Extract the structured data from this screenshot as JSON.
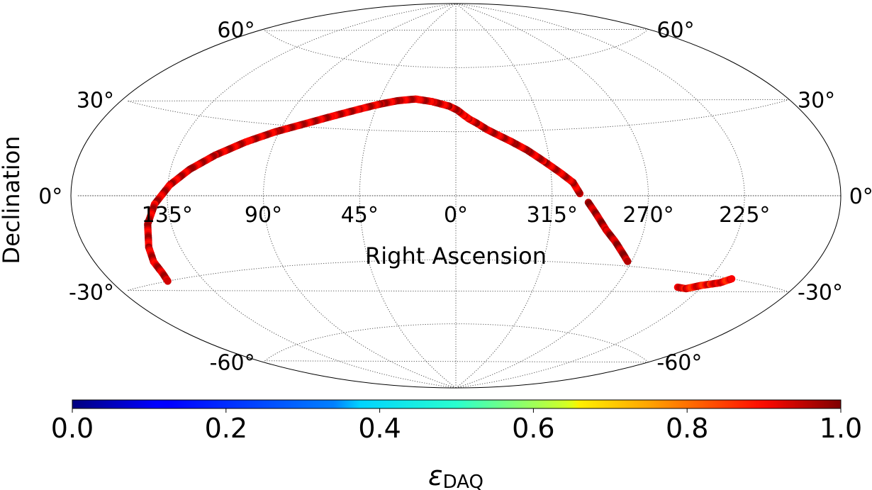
{
  "chart_data": {
    "type": "scatter",
    "projection": "aitoff",
    "xlabel": "Right Ascension",
    "ylabel": "Declination",
    "ra_tick_labels": [
      "135°",
      "90°",
      "45°",
      "0°",
      "315°",
      "270°",
      "225°"
    ],
    "ra_tick_values": [
      135,
      90,
      45,
      0,
      315,
      270,
      225
    ],
    "dec_tick_labels": [
      "60°",
      "60°",
      "30°",
      "30°",
      "0°",
      "0°",
      "-30°",
      "-30°",
      "-60°",
      "-60°"
    ],
    "dec_tick_values": [
      60,
      60,
      30,
      30,
      0,
      0,
      -30,
      -30,
      -60,
      -60
    ],
    "grid": true,
    "colormap": "jet",
    "colorbar": {
      "orientation": "horizontal",
      "range": [
        0.0,
        1.0
      ],
      "tick_labels": [
        "0.0",
        "0.2",
        "0.4",
        "0.6",
        "0.8",
        "1.0"
      ],
      "label_main": "ε",
      "label_sub": "DAQ"
    },
    "tracks": [
      {
        "ra_dec": [
          [
            302,
            1
          ],
          [
            305,
            6
          ],
          [
            310,
            10
          ],
          [
            318,
            16
          ],
          [
            325,
            21
          ],
          [
            332,
            25
          ],
          [
            338,
            28
          ],
          [
            344,
            31
          ],
          [
            349,
            34
          ],
          [
            353,
            36
          ],
          [
            356,
            38
          ],
          [
            359,
            40
          ],
          [
            4,
            42
          ],
          [
            14,
            44
          ],
          [
            24,
            45
          ],
          [
            34,
            44
          ],
          [
            44,
            42
          ],
          [
            55,
            39
          ],
          [
            68,
            35
          ],
          [
            80,
            31
          ],
          [
            92,
            27
          ],
          [
            104,
            22
          ],
          [
            116,
            16
          ],
          [
            126,
            10
          ],
          [
            134,
            4
          ],
          [
            141,
            -3
          ],
          [
            146,
            -10
          ],
          [
            150,
            -18
          ],
          [
            152,
            -23
          ],
          [
            152,
            -27
          ],
          [
            153,
            -30
          ]
        ],
        "value": 0.92
      },
      {
        "ra_dec": [
          [
            298,
            -3
          ],
          [
            294,
            -8
          ],
          [
            288,
            -15
          ],
          [
            282,
            -20
          ],
          [
            276,
            -25
          ],
          [
            272,
            -28
          ]
        ],
        "value": 0.95
      },
      {
        "ra_dec": [
          [
            237,
            -36
          ],
          [
            232,
            -36
          ],
          [
            226,
            -34
          ],
          [
            222,
            -33
          ],
          [
            218,
            -32
          ],
          [
            214,
            -30
          ]
        ],
        "value": 0.88
      }
    ]
  }
}
